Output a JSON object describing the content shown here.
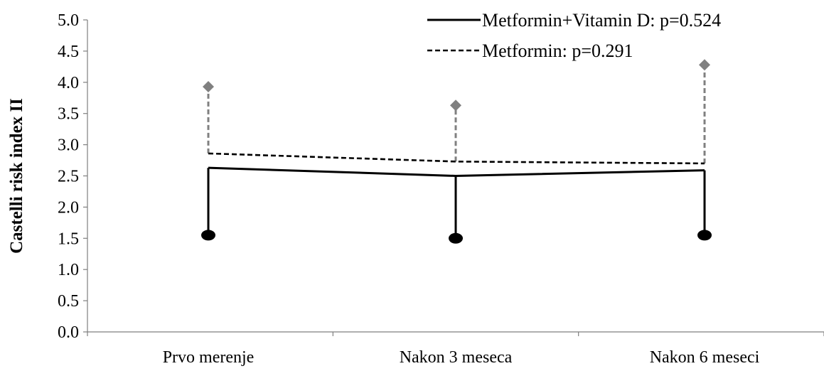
{
  "chart_data": {
    "type": "line",
    "title": "",
    "xlabel": "",
    "ylabel": "Castelli risk index II",
    "ylim": [
      0,
      5
    ],
    "ytick_labels": [
      "0.0",
      "0.5",
      "1.0",
      "1.5",
      "2.0",
      "2.5",
      "3.0",
      "3.5",
      "4.0",
      "4.5",
      "5.0"
    ],
    "categories": [
      "Prvo merenje",
      "Nakon 3 meseca",
      "Nakon 6 meseci"
    ],
    "grid": false,
    "legend_position": "top-right",
    "series": [
      {
        "name": "Metformin+Vitamin D: p=0.524",
        "style": "solid",
        "color": "#000000",
        "marker_color": "#000000",
        "marker": "circle",
        "error_direction": "down",
        "values": [
          2.63,
          2.5,
          2.59
        ],
        "error_ends": [
          1.55,
          1.5,
          1.55
        ]
      },
      {
        "name": "Metformin: p=0.291",
        "style": "dashed",
        "color": "#000000",
        "marker_color": "#808080",
        "marker": "diamond",
        "error_direction": "up",
        "values": [
          2.86,
          2.73,
          2.7
        ],
        "error_ends": [
          3.93,
          3.63,
          4.28
        ]
      }
    ]
  }
}
